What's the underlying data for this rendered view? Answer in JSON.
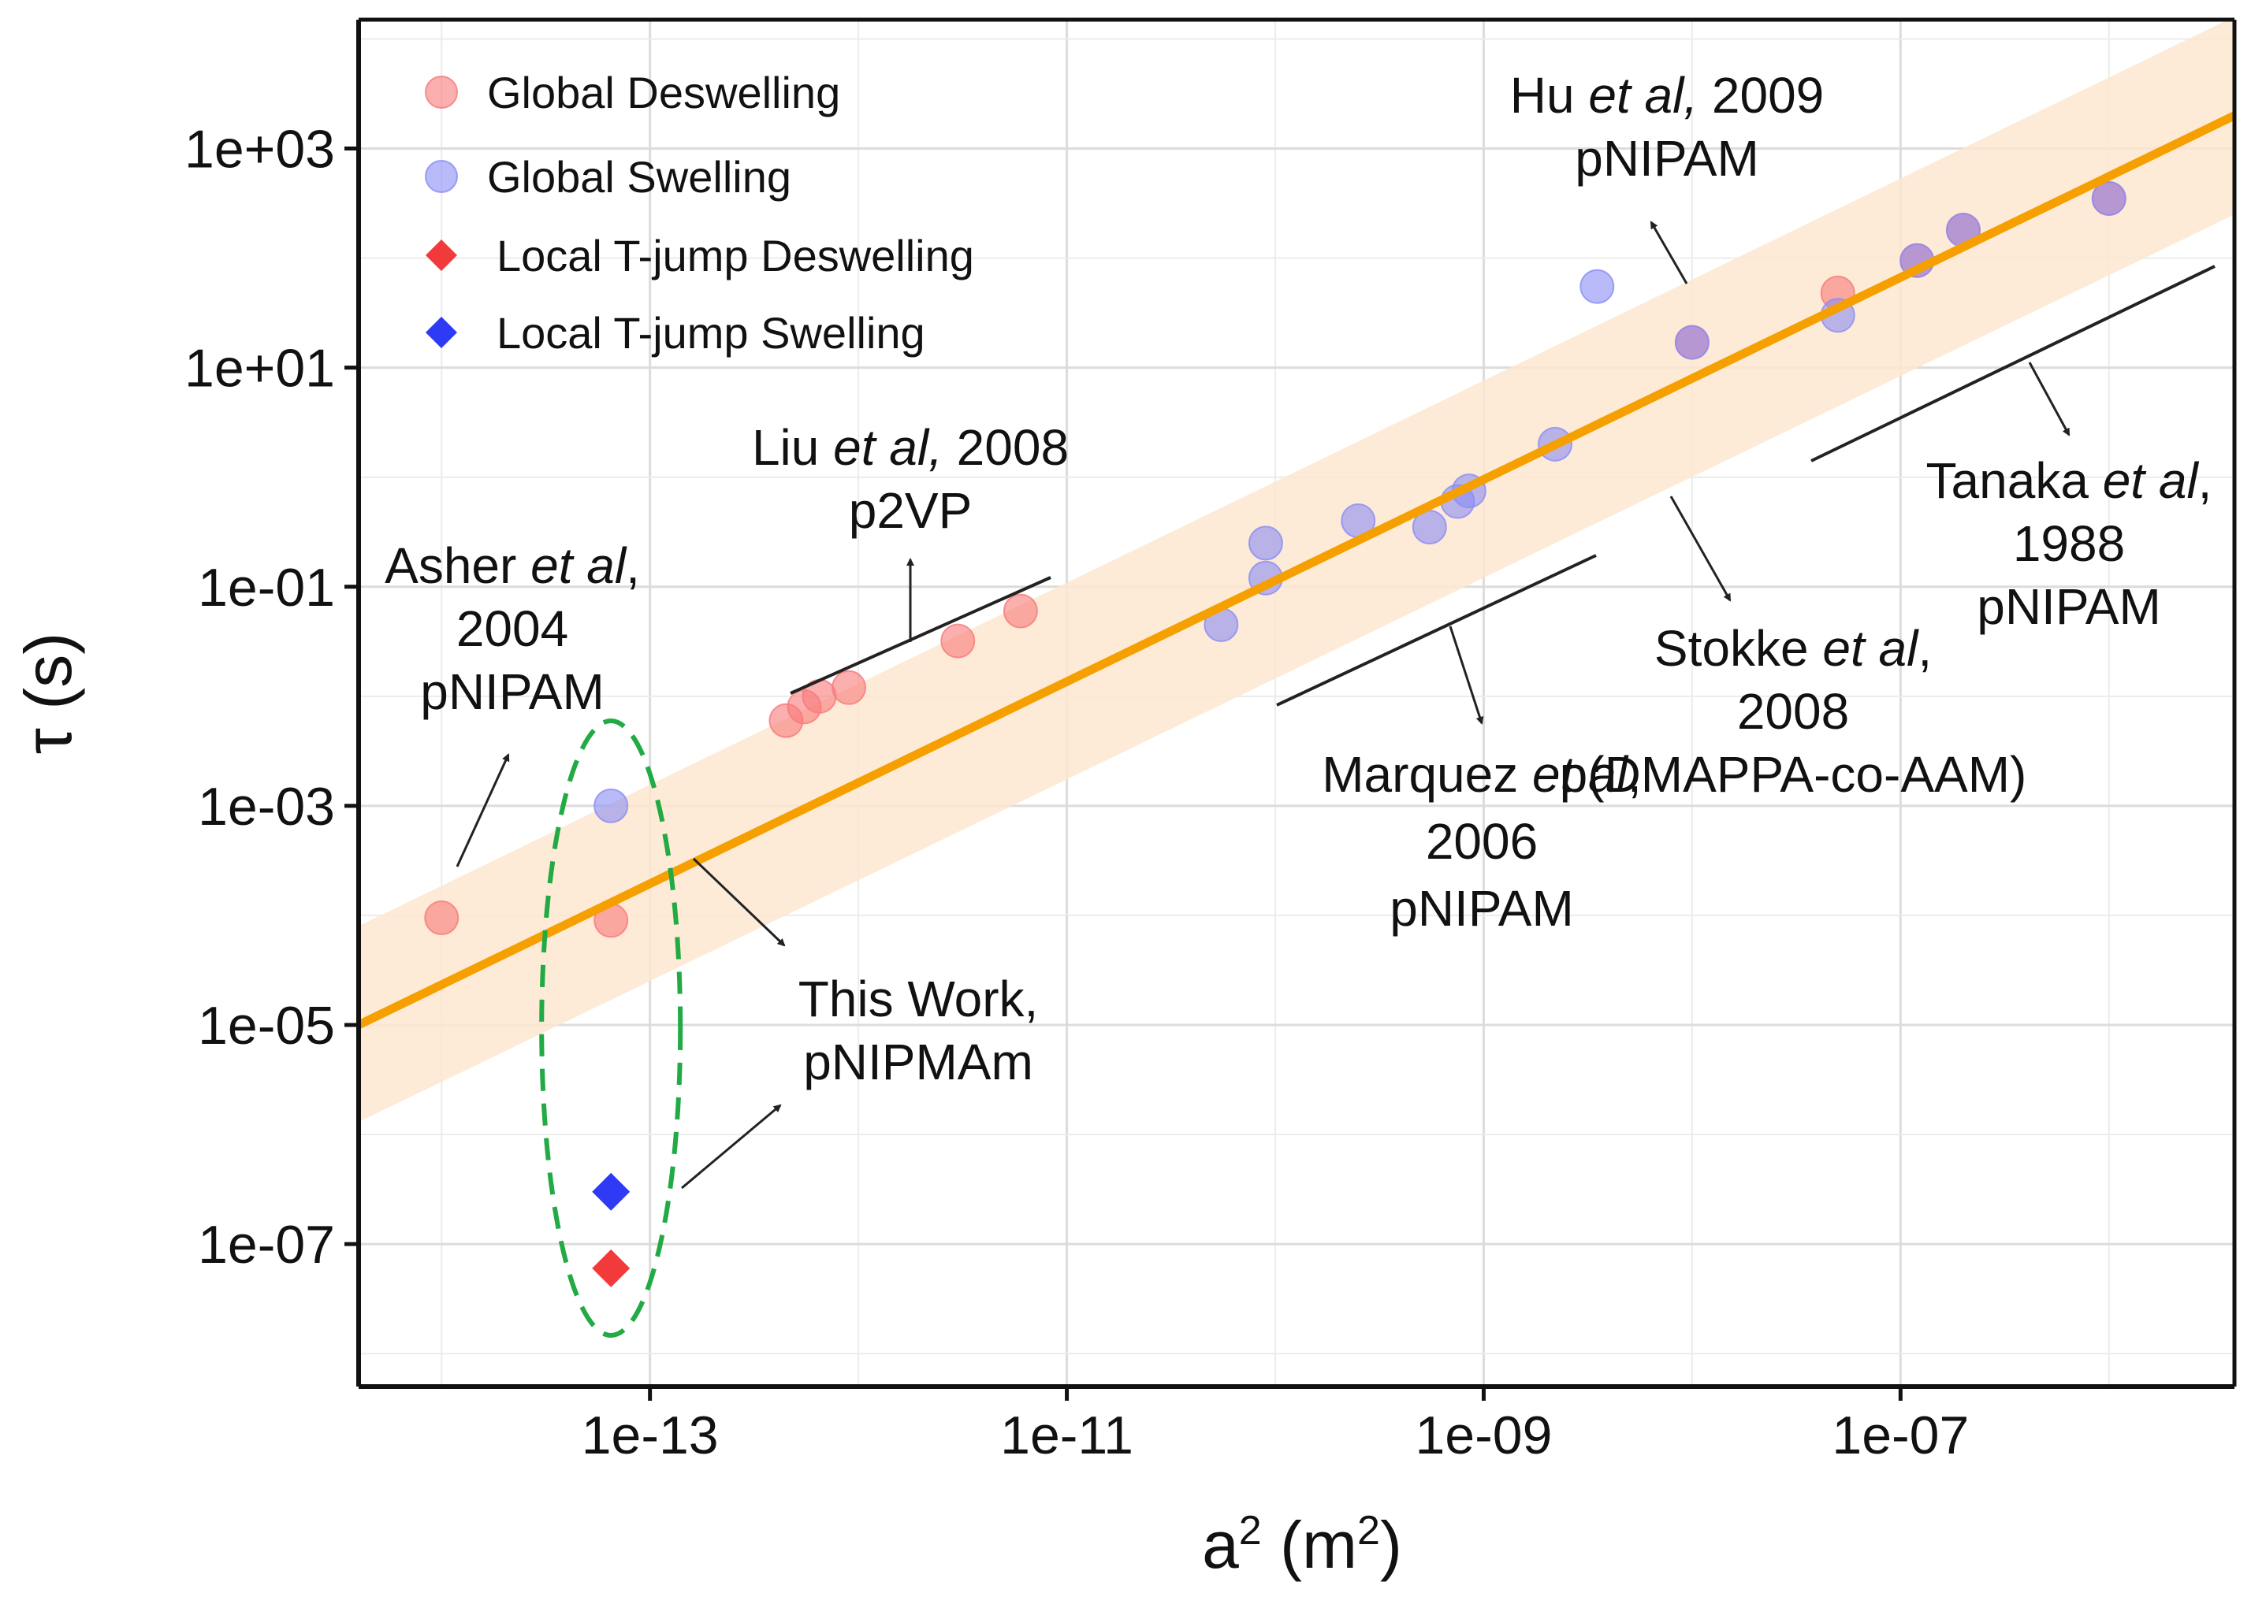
{
  "chart_data": {
    "type": "scatter",
    "xlabel": "a",
    "xlabel_sup": "2",
    "xlabel_unit_open": " (m",
    "xlabel_unit_sup": "2",
    "xlabel_unit_close": ")",
    "ylabel": "τ (s)",
    "xscale": "log",
    "yscale": "log",
    "xlim": [
      4e-15,
      4e-06
    ],
    "ylim": [
      5e-09,
      15000.0
    ],
    "grid": true,
    "legend_position": "top-left",
    "x_ticks": [
      {
        "value": 1e-13,
        "label": "1e-13"
      },
      {
        "value": 1e-11,
        "label": "1e-11"
      },
      {
        "value": 1e-09,
        "label": "1e-09"
      },
      {
        "value": 1e-07,
        "label": "1e-07"
      }
    ],
    "y_ticks": [
      {
        "value": 1000.0,
        "label": "1e+03"
      },
      {
        "value": 10.0,
        "label": "1e+01"
      },
      {
        "value": 0.1,
        "label": "1e-01"
      },
      {
        "value": 0.001,
        "label": "1e-03"
      },
      {
        "value": 1e-05,
        "label": "1e-05"
      },
      {
        "value": 1e-07,
        "label": "1e-07"
      }
    ],
    "fit_line": {
      "x": [
        4e-15,
        4e-06
      ],
      "y": [
        1e-05,
        2000.0
      ],
      "color": "#f5a000"
    },
    "fit_band": {
      "x": [
        4e-15,
        4e-06
      ],
      "upper": [
        8e-05,
        16000.0
      ],
      "lower": [
        1.3e-06,
        250.0
      ],
      "color": "#fde8d0"
    },
    "series": [
      {
        "name": "Global Deswelling",
        "marker": "circle",
        "color": "#f87a7a",
        "points": [
          {
            "x": 1e-14,
            "y": 9.5e-05
          },
          {
            "x": 6.5e-14,
            "y": 9e-05
          },
          {
            "x": 4.5e-13,
            "y": 0.006
          },
          {
            "x": 5.5e-13,
            "y": 0.008
          },
          {
            "x": 6.5e-13,
            "y": 0.01
          },
          {
            "x": 9e-13,
            "y": 0.012
          },
          {
            "x": 3e-12,
            "y": 0.032
          },
          {
            "x": 6e-12,
            "y": 0.06
          },
          {
            "x": 1e-08,
            "y": 17
          },
          {
            "x": 5e-08,
            "y": 48
          },
          {
            "x": 1.2e-07,
            "y": 95
          },
          {
            "x": 2e-07,
            "y": 180
          },
          {
            "x": 1e-06,
            "y": 350
          }
        ]
      },
      {
        "name": "Global Swelling",
        "marker": "circle",
        "color": "#8a8cf5",
        "points": [
          {
            "x": 6.5e-14,
            "y": 0.001
          },
          {
            "x": 5.5e-11,
            "y": 0.045
          },
          {
            "x": 9e-11,
            "y": 0.25
          },
          {
            "x": 9e-11,
            "y": 0.12
          },
          {
            "x": 2.5e-10,
            "y": 0.4
          },
          {
            "x": 5.5e-10,
            "y": 0.35
          },
          {
            "x": 7.5e-10,
            "y": 0.6
          },
          {
            "x": 8.5e-10,
            "y": 0.75
          },
          {
            "x": 2.2e-09,
            "y": 2.0
          },
          {
            "x": 3.5e-09,
            "y": 55
          },
          {
            "x": 1e-08,
            "y": 17
          },
          {
            "x": 5e-08,
            "y": 30
          },
          {
            "x": 1.2e-07,
            "y": 95
          },
          {
            "x": 2e-07,
            "y": 180
          },
          {
            "x": 1e-06,
            "y": 350
          }
        ]
      },
      {
        "name": "Local T-jump Deswelling",
        "marker": "diamond",
        "color": "#f23a3a",
        "points": [
          {
            "x": 6.5e-14,
            "y": 6e-08
          }
        ]
      },
      {
        "name": "Local T-jump Swelling",
        "marker": "diamond",
        "color": "#2f3af5",
        "points": [
          {
            "x": 6.5e-14,
            "y": 3e-07
          }
        ]
      }
    ],
    "annotations": [
      {
        "id": "asher",
        "lines": [
          [
            {
              "t": "Asher "
            },
            {
              "t": "et al",
              "i": true
            },
            {
              "t": ","
            }
          ],
          [
            {
              "t": "2004"
            }
          ],
          [
            {
              "t": "pNIPAM"
            }
          ]
        ]
      },
      {
        "id": "liu",
        "lines": [
          [
            {
              "t": "Liu "
            },
            {
              "t": "et al,",
              "i": true
            },
            {
              "t": " 2008"
            }
          ],
          [
            {
              "t": "p2VP"
            }
          ]
        ]
      },
      {
        "id": "hu",
        "lines": [
          [
            {
              "t": "Hu "
            },
            {
              "t": "et al,",
              "i": true
            },
            {
              "t": " 2009"
            }
          ],
          [
            {
              "t": "pNIPAM"
            }
          ]
        ]
      },
      {
        "id": "tanaka",
        "lines": [
          [
            {
              "t": "Tanaka "
            },
            {
              "t": "et al",
              "i": true
            },
            {
              "t": ","
            }
          ],
          [
            {
              "t": "1988"
            }
          ],
          [
            {
              "t": "pNIPAM"
            }
          ]
        ]
      },
      {
        "id": "stokke",
        "lines": [
          [
            {
              "t": "Stokke "
            },
            {
              "t": "et al",
              "i": true
            },
            {
              "t": ","
            }
          ],
          [
            {
              "t": "2008"
            }
          ],
          [
            {
              "t": "p(DMAPPA-co-AAM)"
            }
          ]
        ]
      },
      {
        "id": "marquez",
        "lines": [
          [
            {
              "t": "Marquez "
            },
            {
              "t": "et al",
              "i": true
            },
            {
              "t": ","
            }
          ],
          [
            {
              "t": "2006"
            }
          ],
          [
            {
              "t": "pNIPAM"
            }
          ]
        ]
      },
      {
        "id": "thiswork",
        "lines": [
          [
            {
              "t": "This Work,"
            }
          ],
          [
            {
              "t": "pNIPMAm"
            }
          ]
        ]
      }
    ]
  }
}
